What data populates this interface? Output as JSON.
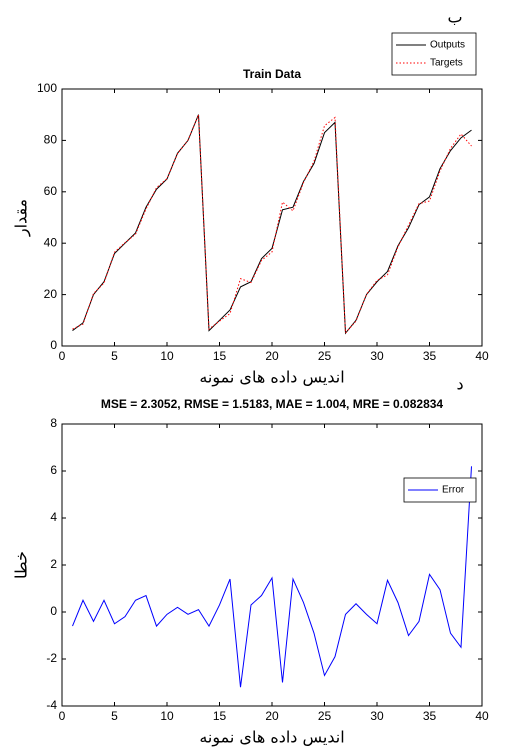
{
  "chart_data": [
    {
      "type": "line",
      "title": "Train Data",
      "annotation": "ب",
      "xlabel": "اندیس داده های نمونه",
      "ylabel": "مقدار",
      "x": [
        1,
        2,
        3,
        4,
        5,
        6,
        7,
        8,
        9,
        10,
        11,
        12,
        13,
        14,
        15,
        16,
        17,
        18,
        19,
        20,
        21,
        22,
        23,
        24,
        25,
        26,
        27,
        28,
        29,
        30,
        31,
        32,
        33,
        34,
        35,
        36,
        37,
        38,
        39
      ],
      "series": [
        {
          "name": "Outputs",
          "color": "#000000",
          "style": "solid",
          "values": [
            6,
            9,
            20,
            25,
            36,
            40,
            44,
            54,
            61,
            65,
            75,
            80,
            90,
            6,
            10,
            14,
            23,
            25,
            34,
            38,
            53,
            54,
            64,
            71,
            83,
            87,
            5,
            10,
            20,
            25,
            29,
            39,
            46,
            55,
            58,
            69,
            76,
            81,
            84
          ]
        },
        {
          "name": "Targets",
          "color": "#ff0000",
          "style": "dotted",
          "values": [
            6.6,
            8.5,
            20.4,
            24.5,
            36.5,
            40.2,
            43.5,
            53.3,
            61.6,
            65.1,
            74.8,
            80.1,
            89.9,
            6.6,
            9.7,
            12.6,
            26.2,
            24.7,
            33.3,
            36.6,
            56,
            52.6,
            63.6,
            71.9,
            85.7,
            88.9,
            5.1,
            9.7,
            20.1,
            25.5,
            27.7,
            38.6,
            47,
            55.4,
            56.4,
            68.1,
            76.9,
            82.5,
            77.8
          ]
        }
      ],
      "xlim": [
        0,
        40
      ],
      "xticks": [
        0,
        5,
        10,
        15,
        20,
        25,
        30,
        35,
        40
      ],
      "ylim": [
        0,
        100
      ],
      "yticks": [
        0,
        20,
        40,
        60,
        80,
        100
      ],
      "legend": "outside-top-right"
    },
    {
      "type": "line",
      "title": "MSE = 2.3052, RMSE = 1.5183, MAE = 1.004, MRE = 0.082834",
      "annotation": "د",
      "xlabel": "اندیس داده های نمونه",
      "ylabel": "خطا",
      "x": [
        1,
        2,
        3,
        4,
        5,
        6,
        7,
        8,
        9,
        10,
        11,
        12,
        13,
        14,
        15,
        16,
        17,
        18,
        19,
        20,
        21,
        22,
        23,
        24,
        25,
        26,
        27,
        28,
        29,
        30,
        31,
        32,
        33,
        34,
        35,
        36,
        37,
        38,
        39
      ],
      "series": [
        {
          "name": "Error",
          "color": "#0000ff",
          "style": "solid",
          "values": [
            -0.6,
            0.5,
            -0.4,
            0.5,
            -0.5,
            -0.2,
            0.5,
            0.7,
            -0.6,
            -0.1,
            0.2,
            -0.1,
            0.1,
            -0.6,
            0.3,
            1.4,
            -3.2,
            0.3,
            0.7,
            1.45,
            -3.0,
            1.4,
            0.4,
            -0.9,
            -2.7,
            -1.9,
            -0.1,
            0.35,
            -0.1,
            -0.5,
            1.35,
            0.4,
            -1.0,
            -0.4,
            1.6,
            0.95,
            -0.9,
            -1.5,
            6.2
          ]
        }
      ],
      "xlim": [
        0,
        40
      ],
      "xticks": [
        0,
        5,
        10,
        15,
        20,
        25,
        30,
        35,
        40
      ],
      "ylim": [
        -4,
        8
      ],
      "yticks": [
        -4,
        -2,
        0,
        2,
        4,
        6,
        8
      ],
      "legend": "top-right"
    }
  ]
}
